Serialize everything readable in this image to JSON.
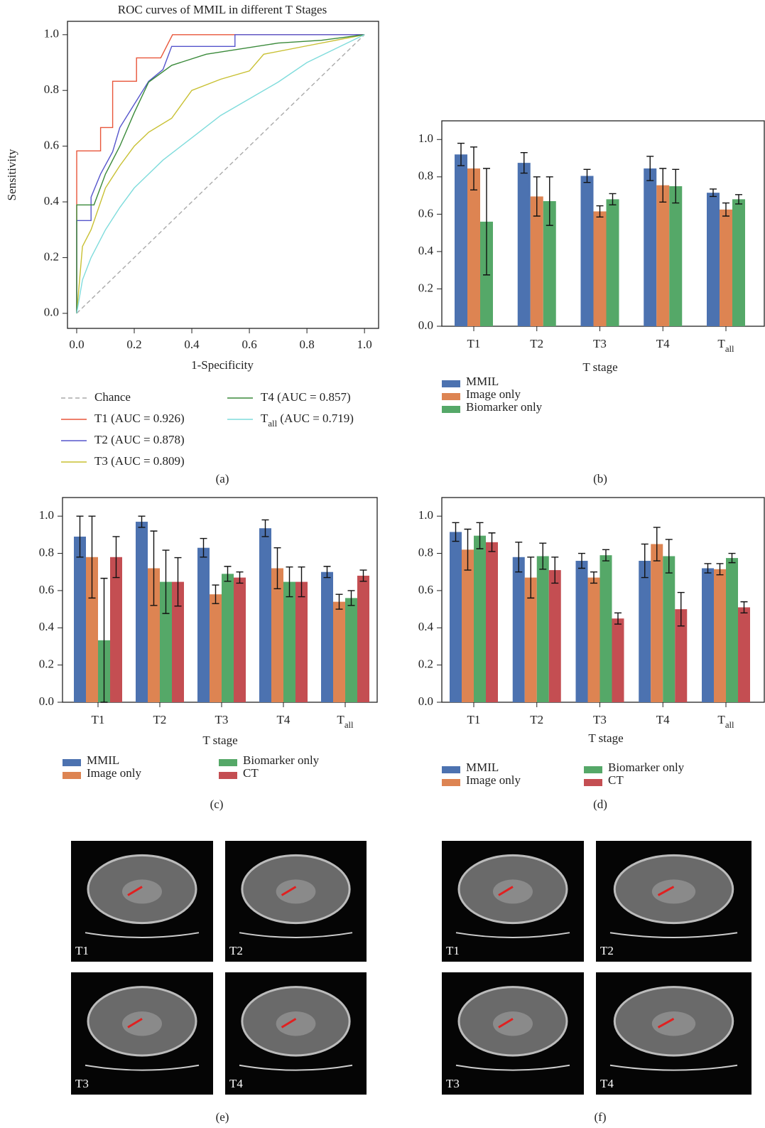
{
  "chart_data": [
    {
      "type": "line",
      "title": "ROC curves of MMIL in different T Stages",
      "panel": "(a)",
      "xlabel": "1-Specificity",
      "ylabel": "Sensitivity",
      "xlim": [
        -0.032,
        1.049
      ],
      "ylim": [
        -0.054,
        1.048
      ],
      "xticks": [
        {
          "value": 0,
          "label": "0.0"
        },
        0.2,
        0.4,
        0.6,
        0.8,
        {
          "value": 1,
          "label": "1.0"
        }
      ],
      "yticks": [
        {
          "value": 0,
          "label": "0.0"
        },
        0.2,
        0.4,
        0.6,
        0.8,
        {
          "value": 1,
          "label": "1.0"
        }
      ],
      "series": [
        {
          "name": "Chance",
          "color": "#aaaaaa",
          "dashed": true,
          "x": [
            0,
            1
          ],
          "values": [
            0,
            1
          ]
        },
        {
          "name": "T1 (AUC = 0.926)",
          "color": "#e8563a",
          "x": [
            0,
            0,
            0.083,
            0.083,
            0.125,
            0.125,
            0.208,
            0.208,
            0.292,
            0.333,
            1
          ],
          "values": [
            0,
            0.583,
            0.583,
            0.667,
            0.667,
            0.833,
            0.833,
            0.917,
            0.917,
            1,
            1
          ]
        },
        {
          "name": "T2 (AUC = 0.878)",
          "color": "#5555cc",
          "x": [
            0,
            0,
            0.05,
            0.05,
            0.083,
            0.125,
            0.15,
            0.2,
            0.25,
            0.3,
            0.33,
            0.55,
            0.55,
            1
          ],
          "values": [
            0,
            0.333,
            0.333,
            0.417,
            0.5,
            0.58,
            0.667,
            0.75,
            0.833,
            0.875,
            0.958,
            0.958,
            1,
            1
          ]
        },
        {
          "name": "T3 (AUC = 0.809)",
          "color": "#c8c032",
          "x": [
            0,
            0.02,
            0.05,
            0.1,
            0.15,
            0.2,
            0.25,
            0.33,
            0.4,
            0.5,
            0.6,
            0.65,
            0.8,
            0.9,
            1
          ],
          "values": [
            0,
            0.24,
            0.3,
            0.45,
            0.53,
            0.6,
            0.65,
            0.7,
            0.8,
            0.84,
            0.87,
            0.93,
            0.96,
            0.98,
            1
          ]
        },
        {
          "name": "T4 (AUC = 0.857)",
          "color": "#3a8a3a",
          "x": [
            0,
            0,
            0.06,
            0.1,
            0.15,
            0.2,
            0.25,
            0.33,
            0.45,
            0.7,
            0.85,
            1
          ],
          "values": [
            0,
            0.389,
            0.389,
            0.5,
            0.6,
            0.72,
            0.83,
            0.89,
            0.93,
            0.97,
            0.98,
            1
          ]
        },
        {
          "name": "Tall (AUC = 0.719)",
          "color": "#7fdcdc",
          "x": [
            0,
            0.02,
            0.05,
            0.1,
            0.15,
            0.2,
            0.3,
            0.4,
            0.5,
            0.6,
            0.7,
            0.8,
            0.9,
            1
          ],
          "values": [
            0,
            0.12,
            0.2,
            0.3,
            0.38,
            0.45,
            0.55,
            0.63,
            0.71,
            0.77,
            0.83,
            0.9,
            0.95,
            1
          ]
        }
      ]
    },
    {
      "type": "bar",
      "panel": "(b)",
      "xlabel": "T stage",
      "categories": [
        "T1",
        "T2",
        "T3",
        "T4",
        "Tall"
      ],
      "ylim": [
        0,
        1.1
      ],
      "yticks": [
        {
          "value": 0,
          "label": "0.0"
        },
        0.2,
        0.4,
        0.6,
        0.8,
        {
          "value": 1,
          "label": "1.0"
        }
      ],
      "series": [
        {
          "name": "MMIL",
          "color": "#4c72b0",
          "values": [
            0.92,
            0.875,
            0.805,
            0.845,
            0.715
          ],
          "errors": [
            0.06,
            0.055,
            0.035,
            0.065,
            0.02
          ]
        },
        {
          "name": "Image only",
          "color": "#dd8452",
          "values": [
            0.845,
            0.695,
            0.615,
            0.755,
            0.625
          ],
          "errors": [
            0.115,
            0.105,
            0.03,
            0.09,
            0.035
          ]
        },
        {
          "name": "Biomarker only",
          "color": "#55a868",
          "values": [
            0.56,
            0.67,
            0.68,
            0.75,
            0.68
          ],
          "errors": [
            0.285,
            0.13,
            0.03,
            0.09,
            0.025
          ]
        }
      ]
    },
    {
      "type": "bar",
      "panel": "(c)",
      "xlabel": "T stage",
      "categories": [
        "T1",
        "T2",
        "T3",
        "T4",
        "Tall"
      ],
      "ylim": [
        0,
        1.1
      ],
      "yticks": [
        {
          "value": 0,
          "label": "0.0"
        },
        0.2,
        0.4,
        0.6,
        0.8,
        {
          "value": 1,
          "label": "1.0"
        }
      ],
      "series": [
        {
          "name": "MMIL",
          "color": "#4c72b0",
          "values": [
            0.89,
            0.97,
            0.83,
            0.935,
            0.7
          ],
          "errors": [
            0.11,
            0.03,
            0.05,
            0.045,
            0.03
          ]
        },
        {
          "name": "Image only",
          "color": "#dd8452",
          "values": [
            0.78,
            0.72,
            0.58,
            0.72,
            0.54
          ],
          "errors": [
            0.22,
            0.2,
            0.05,
            0.11,
            0.04
          ]
        },
        {
          "name": "Biomarker only",
          "color": "#55a868",
          "values": [
            0.333,
            0.647,
            0.69,
            0.647,
            0.56
          ],
          "errors": [
            0.333,
            0.17,
            0.04,
            0.08,
            0.04
          ]
        },
        {
          "name": "CT",
          "color": "#c44e52",
          "values": [
            0.78,
            0.647,
            0.67,
            0.647,
            0.68
          ],
          "errors": [
            0.11,
            0.13,
            0.03,
            0.08,
            0.03
          ]
        }
      ]
    },
    {
      "type": "bar",
      "panel": "(d)",
      "xlabel": "T stage",
      "categories": [
        "T1",
        "T2",
        "T3",
        "T4",
        "Tall"
      ],
      "ylim": [
        0,
        1.1
      ],
      "yticks": [
        {
          "value": 0,
          "label": "0.0"
        },
        0.2,
        0.4,
        0.6,
        0.8,
        {
          "value": 1,
          "label": "1.0"
        }
      ],
      "series": [
        {
          "name": "MMIL",
          "color": "#4c72b0",
          "values": [
            0.915,
            0.78,
            0.76,
            0.76,
            0.72
          ],
          "errors": [
            0.05,
            0.08,
            0.04,
            0.09,
            0.025
          ]
        },
        {
          "name": "Image only",
          "color": "#dd8452",
          "values": [
            0.82,
            0.67,
            0.67,
            0.85,
            0.715
          ],
          "errors": [
            0.11,
            0.11,
            0.03,
            0.09,
            0.03
          ]
        },
        {
          "name": "Biomarker only",
          "color": "#55a868",
          "values": [
            0.895,
            0.785,
            0.79,
            0.785,
            0.775
          ],
          "errors": [
            0.07,
            0.07,
            0.03,
            0.09,
            0.025
          ]
        },
        {
          "name": "CT",
          "color": "#c44e52",
          "values": [
            0.86,
            0.71,
            0.45,
            0.5,
            0.51
          ],
          "errors": [
            0.05,
            0.07,
            0.03,
            0.09,
            0.03
          ]
        }
      ]
    }
  ],
  "image_panels": [
    {
      "panel": "(e)",
      "labels": [
        "T1",
        "T2",
        "T3",
        "T4"
      ]
    },
    {
      "panel": "(f)",
      "labels": [
        "T1",
        "T2",
        "T3",
        "T4"
      ]
    }
  ]
}
